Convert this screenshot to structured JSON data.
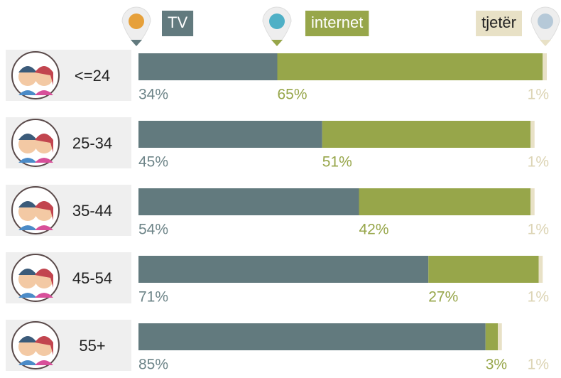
{
  "chart_data": {
    "type": "bar",
    "orientation": "horizontal",
    "stacked": true,
    "categories": [
      "<=24",
      "25-34",
      "35-44",
      "45-54",
      "55+"
    ],
    "xlim": [
      0,
      100
    ],
    "series": [
      {
        "name": "TV",
        "color": "#627a7e",
        "label_color": "#6e8589",
        "values": [
          34,
          45,
          54,
          71,
          85
        ],
        "value_labels": [
          "34%",
          "45%",
          "54%",
          "71%",
          "85%"
        ]
      },
      {
        "name": "internet",
        "color": "#97a64a",
        "label_color": "#97a64a",
        "values": [
          65,
          51,
          42,
          27,
          3
        ],
        "value_labels": [
          "65%",
          "51%",
          "42%",
          "27%",
          "3%"
        ]
      },
      {
        "name": "tjetër",
        "color": "#e8e1c6",
        "label_color": "#dcd4b4",
        "values": [
          1,
          1,
          1,
          1,
          1
        ],
        "value_labels": [
          "1%",
          "1%",
          "1%",
          "1%",
          "1%"
        ]
      }
    ]
  }
}
